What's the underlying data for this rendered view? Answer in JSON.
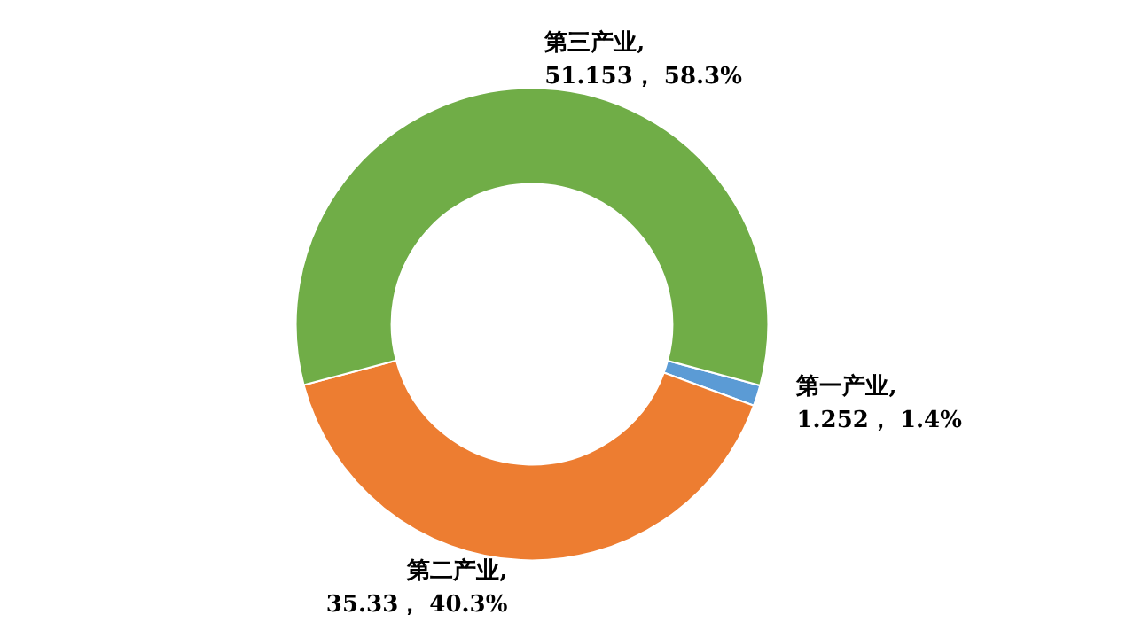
{
  "chart_data": {
    "type": "donut",
    "categories": [
      "第一产业",
      "第二产业",
      "第三产业"
    ],
    "values": [
      1.252,
      35.33,
      51.153
    ],
    "colors": [
      "#5b9bd5",
      "#ed7d31",
      "#70ad47"
    ],
    "value_labels": [
      ",\n1.252， 1.4%",
      ",\n35.33， 40.3%",
      ",\n51.153， 58.3%"
    ],
    "legend": false
  }
}
